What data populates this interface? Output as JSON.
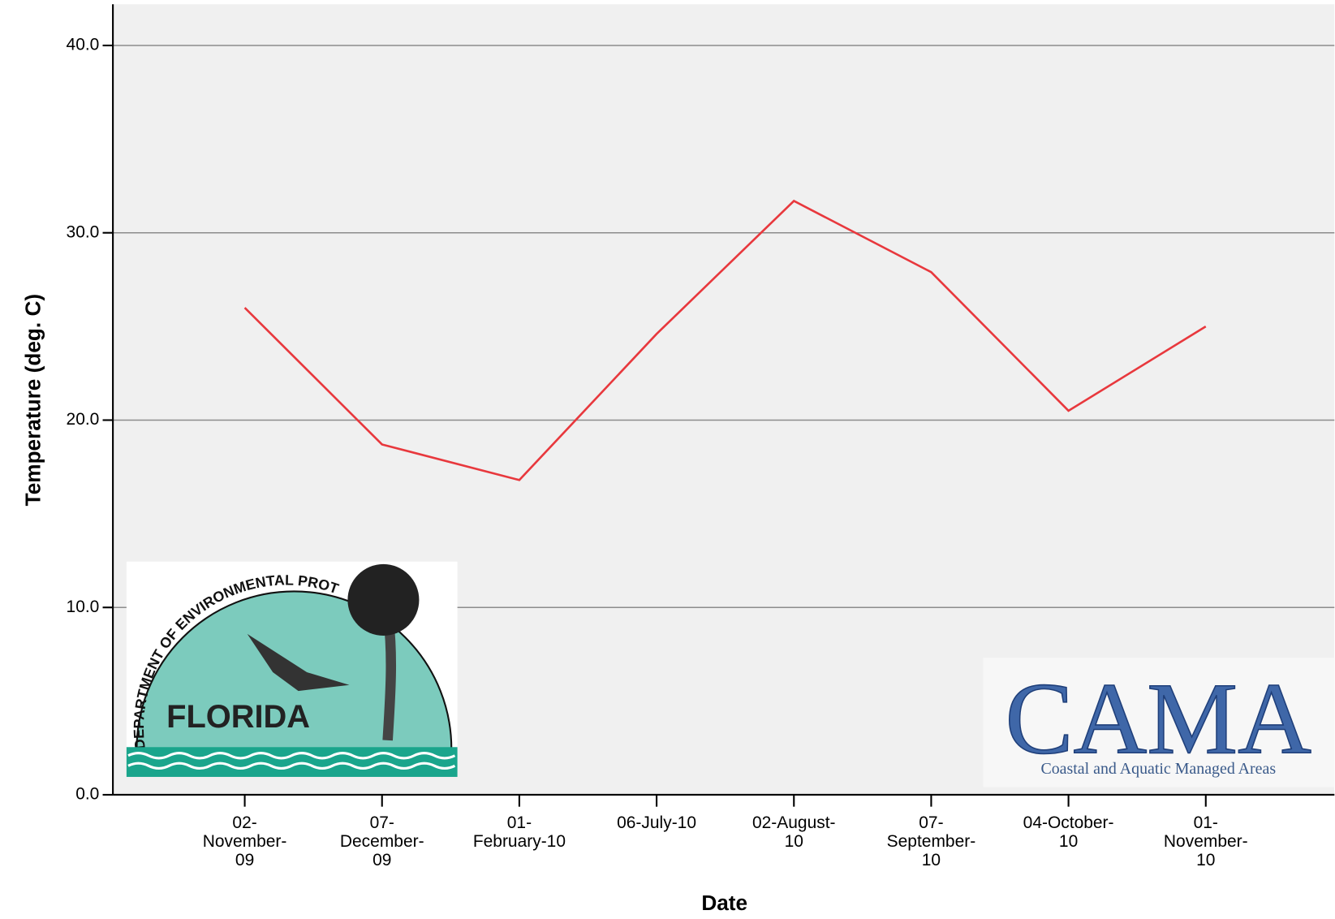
{
  "chart_data": {
    "type": "line",
    "y_axis_label": "Temperature (deg. C)",
    "x_axis_label": "Date",
    "categories": [
      "02-November-09",
      "07-December-09",
      "01-February-10",
      "06-July-10",
      "02-August-10",
      "07-September-10",
      "04-October-10",
      "01-November-10"
    ],
    "series": [
      {
        "name": "Temperature",
        "color": "#e8383d",
        "values": [
          26.0,
          18.7,
          16.8,
          24.6,
          31.7,
          27.9,
          20.5,
          25.0
        ]
      }
    ],
    "ylim": [
      0,
      42.2
    ],
    "yticks": [
      {
        "value": 0,
        "label": "0.0"
      },
      {
        "value": 10,
        "label": "10.0"
      },
      {
        "value": 20,
        "label": "20.0"
      },
      {
        "value": 30,
        "label": "30.0"
      },
      {
        "value": 40,
        "label": "40.0"
      }
    ],
    "grid": true
  },
  "logos": {
    "florida_arc": "DEPARTMENT OF ENVIRONMENTAL PROTECTION",
    "florida_name": "FLORIDA",
    "cama_name": "CAMA",
    "cama_subtitle": "Coastal and Aquatic Managed Areas"
  }
}
